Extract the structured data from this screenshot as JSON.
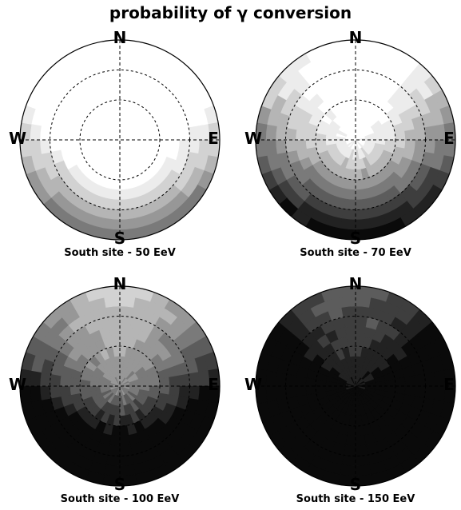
{
  "figure": {
    "title": "probability of γ conversion"
  },
  "chart_data": [
    {
      "type": "heatmap",
      "projection": "polar-sky",
      "caption": "South site - 50 EeV",
      "directions": [
        "N",
        "E",
        "S",
        "W"
      ],
      "energy_eev": 50,
      "gray_levels": [
        "#ffffff",
        "#ececec",
        "#d2d2d2",
        "#b5b5b5",
        "#979797",
        "#7a7a7a",
        "#5c5c5c",
        "#3e3e3e",
        "#222222",
        "#0a0a0a"
      ],
      "level_profile": {
        "base": -4.2,
        "south": 9.4,
        "zenith": 0.0,
        "ew_south_extra": 2.0
      }
    },
    {
      "type": "heatmap",
      "projection": "polar-sky",
      "caption": "South site - 70 EeV",
      "directions": [
        "N",
        "E",
        "S",
        "W"
      ],
      "energy_eev": 70,
      "gray_levels": [
        "#ffffff",
        "#ececec",
        "#d2d2d2",
        "#b5b5b5",
        "#979797",
        "#7a7a7a",
        "#5c5c5c",
        "#3e3e3e",
        "#222222",
        "#0a0a0a"
      ],
      "level_profile": {
        "base": -1.6,
        "south": 10.8,
        "zenith": 2.6,
        "ew_south_extra": 1.5
      }
    },
    {
      "type": "heatmap",
      "projection": "polar-sky",
      "caption": "South site - 100 EeV",
      "directions": [
        "N",
        "E",
        "S",
        "W"
      ],
      "energy_eev": 100,
      "gray_levels": [
        "#ffffff",
        "#ececec",
        "#d2d2d2",
        "#b5b5b5",
        "#979797",
        "#7a7a7a",
        "#5c5c5c",
        "#3e3e3e",
        "#222222",
        "#0a0a0a"
      ],
      "level_profile": {
        "base": 1.8,
        "south": 12.0,
        "zenith": 4.2,
        "ew_south_extra": 1.0
      }
    },
    {
      "type": "heatmap",
      "projection": "polar-sky",
      "caption": "South site - 150 EeV",
      "directions": [
        "N",
        "E",
        "S",
        "W"
      ],
      "energy_eev": 150,
      "gray_levels": [
        "#ffffff",
        "#ececec",
        "#d2d2d2",
        "#b5b5b5",
        "#979797",
        "#7a7a7a",
        "#5c5c5c",
        "#3e3e3e",
        "#222222",
        "#0a0a0a"
      ],
      "level_profile": {
        "base": 5.6,
        "south": 13.0,
        "zenith": 4.6,
        "ew_south_extra": 0.5
      }
    }
  ]
}
